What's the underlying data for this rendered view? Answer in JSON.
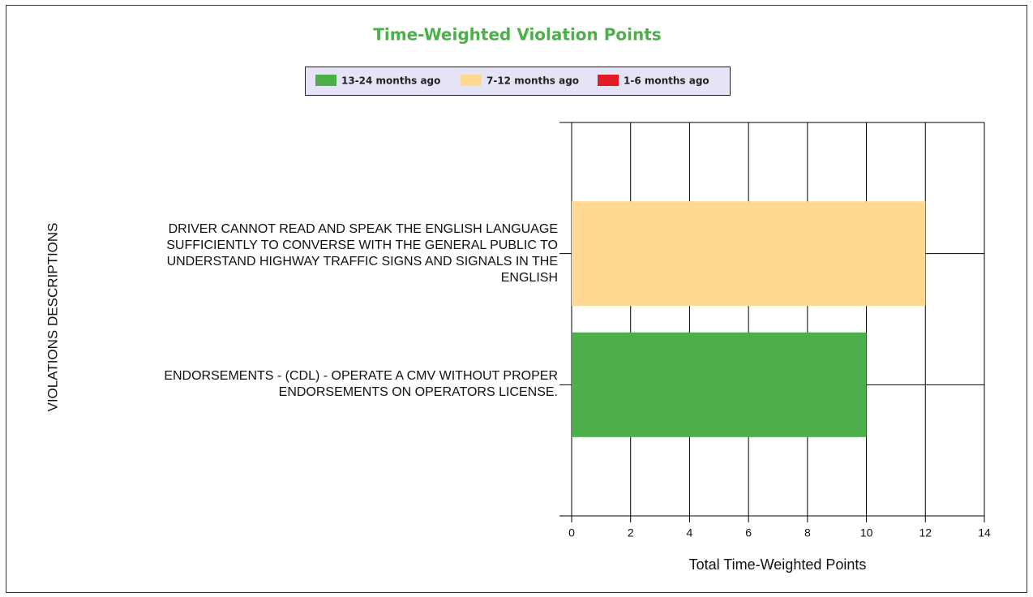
{
  "chart_data": {
    "type": "bar",
    "orientation": "horizontal",
    "stacked": true,
    "title": "Time-Weighted Violation Points",
    "categories": [
      "DRIVER CANNOT READ AND SPEAK THE ENGLISH LANGUAGE SUFFICIENTLY TO CONVERSE WITH THE GENERAL PUBLIC TO UNDERSTAND HIGHWAY TRAFFIC SIGNS AND SIGNALS IN THE ENGLISH",
      "ENDORSEMENTS - (CDL) - OPERATE A CMV WITHOUT PROPER ENDORSEMENTS ON OPERATORS LICENSE."
    ],
    "series": [
      {
        "name": "13-24 months ago",
        "color": "#4caf4a",
        "values": [
          0,
          10
        ]
      },
      {
        "name": "7-12 months ago",
        "color": "#ffd991",
        "values": [
          12,
          0
        ]
      },
      {
        "name": "1-6 months ago",
        "color": "#e31b23",
        "values": [
          0,
          0
        ]
      }
    ],
    "xlabel": "Total Time-Weighted Points",
    "ylabel": "VIOLATIONS DESCRIPTIONS",
    "xlim": [
      0,
      14
    ],
    "xticks": [
      0,
      2,
      4,
      6,
      8,
      10,
      12,
      14
    ],
    "grid": true
  }
}
